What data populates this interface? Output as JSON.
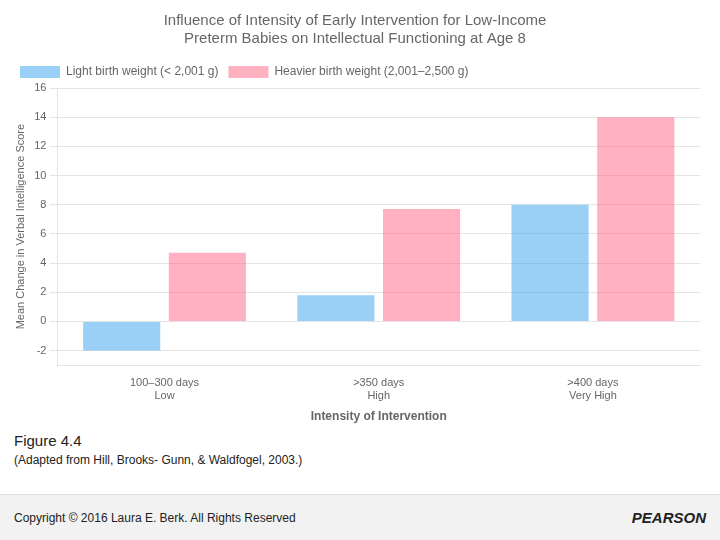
{
  "chart_data": {
    "type": "bar",
    "title": "Influence of Intensity of Early Intervention for Low-Income\nPreterm Babies on Intellectual Functioning at Age 8",
    "categories": [
      "100–300 days\nLow",
      ">350 days\nHigh",
      ">400 days\nVery High"
    ],
    "series": [
      {
        "name": "Light birth weight\n(< 2,001 g)",
        "values": [
          -2.0,
          1.8,
          8.0
        ]
      },
      {
        "name": "Heavier birth weight\n(2,001–2,500 g)",
        "values": [
          4.7,
          7.7,
          14.0
        ]
      }
    ],
    "ylabel": "Mean Change in Verbal Intelligence Score",
    "xlabel": "Intensity of Intervention",
    "ylim": [
      -3,
      16
    ],
    "yticks": [
      -2,
      0,
      2,
      4,
      6,
      8,
      10,
      12,
      14,
      16
    ],
    "grid": true,
    "legend": "upper left",
    "annotations": [
      "Figure 4.4",
      "(Adapted from Hill, Brooks- Gunn, & Waldfogel, 2003.)",
      "Copyright © 2016 Laura E. Berk. All Rights Reserved",
      "PEARSON"
    ]
  }
}
